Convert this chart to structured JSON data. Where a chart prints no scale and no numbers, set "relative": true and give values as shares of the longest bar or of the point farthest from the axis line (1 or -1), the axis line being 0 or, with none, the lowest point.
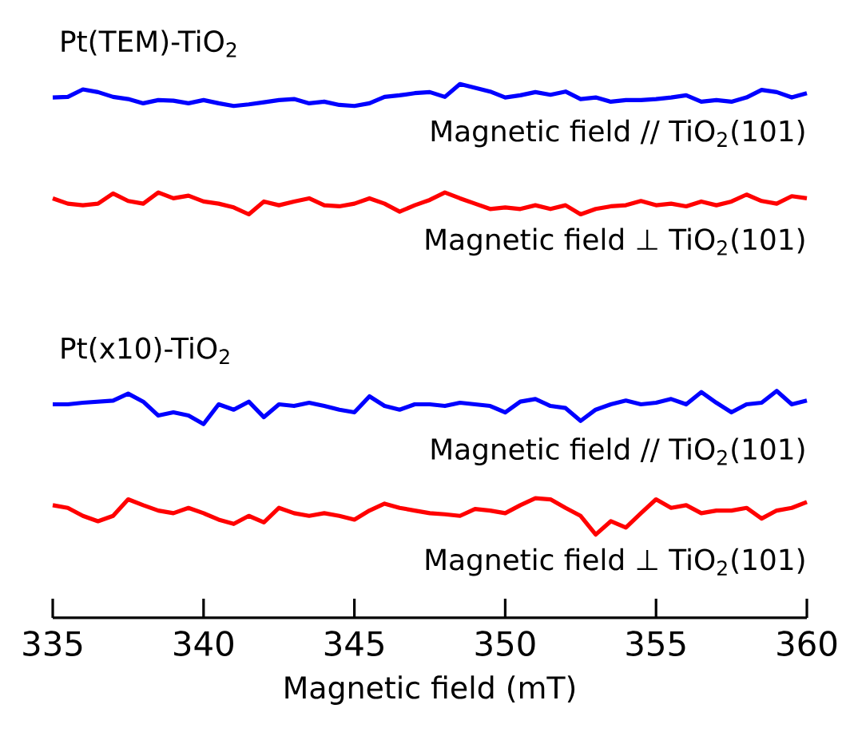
{
  "chart_data": {
    "type": "line",
    "relative": true,
    "xlabel": "Magnetic field (mT)",
    "xlim": [
      335,
      360
    ],
    "xticks": [
      335,
      340,
      345,
      350,
      355,
      360
    ],
    "legend": false,
    "marker": "none",
    "line_style": "solid",
    "annotations": [
      "Pt(TEM)-TiO$_{2}$",
      "Pt(x10)-TiO$_{2}$"
    ],
    "x": [
      335,
      335.5,
      336,
      336.5,
      337,
      337.5,
      338,
      338.5,
      339,
      339.5,
      340,
      340.5,
      341,
      341.5,
      342,
      342.5,
      343,
      343.5,
      344,
      344.5,
      345,
      345.5,
      346,
      346.5,
      347,
      347.5,
      348,
      348.5,
      349,
      349.5,
      350,
      350.5,
      351,
      351.5,
      352,
      352.5,
      353,
      353.5,
      354,
      354.5,
      355,
      355.5,
      356,
      356.5,
      357,
      357.5,
      358,
      358.5,
      359,
      359.5,
      360
    ],
    "series": [
      {
        "name": "Magnetic field // TiO$_{2}$(101)",
        "color": "#0000ff",
        "values": [
          0.975,
          0.976,
          0.99,
          0.985,
          0.976,
          0.972,
          0.964,
          0.97,
          0.969,
          0.964,
          0.97,
          0.964,
          0.959,
          0.962,
          0.966,
          0.97,
          0.972,
          0.964,
          0.967,
          0.961,
          0.959,
          0.964,
          0.976,
          0.979,
          0.983,
          0.985,
          0.976,
          1.0,
          0.993,
          0.986,
          0.975,
          0.979,
          0.985,
          0.98,
          0.986,
          0.972,
          0.975,
          0.967,
          0.97,
          0.97,
          0.972,
          0.975,
          0.979,
          0.967,
          0.97,
          0.967,
          0.975,
          0.989,
          0.985,
          0.975,
          0.983
        ]
      },
      {
        "name": "Magnetic field ⊥ TiO$_{2}$(101)",
        "color": "#ff0000",
        "values": [
          0.786,
          0.776,
          0.773,
          0.776,
          0.795,
          0.781,
          0.776,
          0.797,
          0.786,
          0.791,
          0.78,
          0.776,
          0.769,
          0.756,
          0.78,
          0.773,
          0.78,
          0.786,
          0.773,
          0.771,
          0.776,
          0.786,
          0.776,
          0.761,
          0.773,
          0.783,
          0.797,
          0.786,
          0.776,
          0.766,
          0.769,
          0.766,
          0.773,
          0.766,
          0.773,
          0.756,
          0.766,
          0.771,
          0.773,
          0.781,
          0.773,
          0.776,
          0.771,
          0.78,
          0.773,
          0.78,
          0.793,
          0.781,
          0.776,
          0.79,
          0.786
        ]
      },
      {
        "name": "Magnetic field // TiO$_{2}$(101)",
        "color": "#0000ff",
        "values": [
          0.4,
          0.4,
          0.403,
          0.405,
          0.407,
          0.42,
          0.405,
          0.379,
          0.385,
          0.379,
          0.363,
          0.4,
          0.39,
          0.405,
          0.376,
          0.4,
          0.397,
          0.403,
          0.397,
          0.39,
          0.385,
          0.415,
          0.397,
          0.39,
          0.4,
          0.4,
          0.397,
          0.403,
          0.4,
          0.397,
          0.385,
          0.405,
          0.41,
          0.397,
          0.393,
          0.369,
          0.39,
          0.4,
          0.407,
          0.4,
          0.403,
          0.41,
          0.4,
          0.423,
          0.403,
          0.385,
          0.4,
          0.403,
          0.425,
          0.4,
          0.407
        ]
      },
      {
        "name": "Magnetic field ⊥ TiO$_{2}$(101)",
        "color": "#ff0000",
        "values": [
          0.211,
          0.206,
          0.191,
          0.181,
          0.191,
          0.222,
          0.211,
          0.201,
          0.196,
          0.206,
          0.196,
          0.184,
          0.176,
          0.191,
          0.179,
          0.206,
          0.196,
          0.191,
          0.196,
          0.191,
          0.184,
          0.201,
          0.214,
          0.206,
          0.201,
          0.196,
          0.194,
          0.191,
          0.204,
          0.201,
          0.196,
          0.211,
          0.224,
          0.222,
          0.206,
          0.191,
          0.156,
          0.181,
          0.169,
          0.196,
          0.222,
          0.206,
          0.211,
          0.196,
          0.201,
          0.201,
          0.206,
          0.186,
          0.201,
          0.206,
          0.217
        ]
      }
    ]
  }
}
